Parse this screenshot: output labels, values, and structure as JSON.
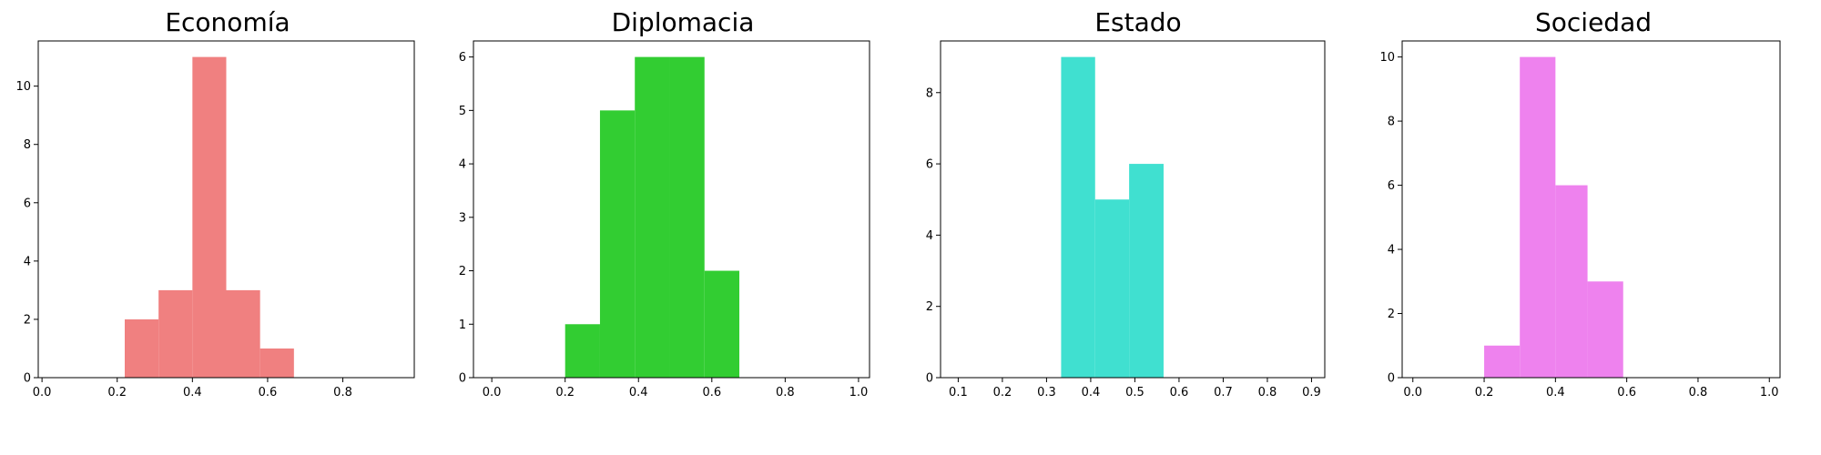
{
  "chart_data": [
    {
      "type": "bar",
      "title": "Economía",
      "color": "#f08080",
      "bins": [
        {
          "x0": 0.22,
          "x1": 0.31,
          "count": 2
        },
        {
          "x0": 0.31,
          "x1": 0.4,
          "count": 3
        },
        {
          "x0": 0.4,
          "x1": 0.49,
          "count": 11
        },
        {
          "x0": 0.49,
          "x1": 0.58,
          "count": 3
        },
        {
          "x0": 0.58,
          "x1": 0.67,
          "count": 1
        }
      ],
      "xlim": [
        -0.01,
        0.99
      ],
      "ylim": [
        0,
        11.55
      ],
      "xticks": [
        0.0,
        0.2,
        0.4,
        0.6,
        0.8
      ],
      "xtick_labels": [
        "0.0",
        "0.2",
        "0.4",
        "0.6",
        "0.8"
      ],
      "yticks": [
        0,
        2,
        4,
        6,
        8,
        10
      ],
      "ytick_labels": [
        "0",
        "2",
        "4",
        "6",
        "8",
        "10"
      ]
    },
    {
      "type": "bar",
      "title": "Diplomacia",
      "color": "#32cd32",
      "bins": [
        {
          "x0": 0.2,
          "x1": 0.295,
          "count": 1
        },
        {
          "x0": 0.295,
          "x1": 0.39,
          "count": 5
        },
        {
          "x0": 0.39,
          "x1": 0.485,
          "count": 6
        },
        {
          "x0": 0.485,
          "x1": 0.58,
          "count": 6
        },
        {
          "x0": 0.58,
          "x1": 0.675,
          "count": 2
        }
      ],
      "xlim": [
        -0.05,
        1.03
      ],
      "ylim": [
        0,
        6.3
      ],
      "xticks": [
        0.0,
        0.2,
        0.4,
        0.6,
        0.8,
        1.0
      ],
      "xtick_labels": [
        "0.0",
        "0.2",
        "0.4",
        "0.6",
        "0.8",
        "1.0"
      ],
      "yticks": [
        0,
        1,
        2,
        3,
        4,
        5,
        6
      ],
      "ytick_labels": [
        "0",
        "1",
        "2",
        "3",
        "4",
        "5",
        "6"
      ]
    },
    {
      "type": "bar",
      "title": "Estado",
      "color": "#40e0d0",
      "bins": [
        {
          "x0": 0.333,
          "x1": 0.41,
          "count": 9
        },
        {
          "x0": 0.41,
          "x1": 0.487,
          "count": 5
        },
        {
          "x0": 0.487,
          "x1": 0.565,
          "count": 6
        }
      ],
      "xlim": [
        0.06,
        0.93
      ],
      "ylim": [
        0,
        9.45
      ],
      "xticks": [
        0.1,
        0.2,
        0.3,
        0.4,
        0.5,
        0.6,
        0.7,
        0.8,
        0.9
      ],
      "xtick_labels": [
        "0.1",
        "0.2",
        "0.3",
        "0.4",
        "0.5",
        "0.6",
        "0.7",
        "0.8",
        "0.9"
      ],
      "yticks": [
        0,
        2,
        4,
        6,
        8
      ],
      "ytick_labels": [
        "0",
        "2",
        "4",
        "6",
        "8"
      ]
    },
    {
      "type": "bar",
      "title": "Sociedad",
      "color": "#ee82ee",
      "bins": [
        {
          "x0": 0.2,
          "x1": 0.3,
          "count": 1
        },
        {
          "x0": 0.3,
          "x1": 0.4,
          "count": 10
        },
        {
          "x0": 0.4,
          "x1": 0.49,
          "count": 6
        },
        {
          "x0": 0.49,
          "x1": 0.59,
          "count": 3
        }
      ],
      "xlim": [
        -0.03,
        1.03
      ],
      "ylim": [
        0,
        10.5
      ],
      "xticks": [
        0.0,
        0.2,
        0.4,
        0.6,
        0.8,
        1.0
      ],
      "xtick_labels": [
        "0.0",
        "0.2",
        "0.4",
        "0.6",
        "0.8",
        "1.0"
      ],
      "yticks": [
        0,
        2,
        4,
        6,
        8,
        10
      ],
      "ytick_labels": [
        "0",
        "2",
        "4",
        "6",
        "8",
        "10"
      ]
    }
  ]
}
